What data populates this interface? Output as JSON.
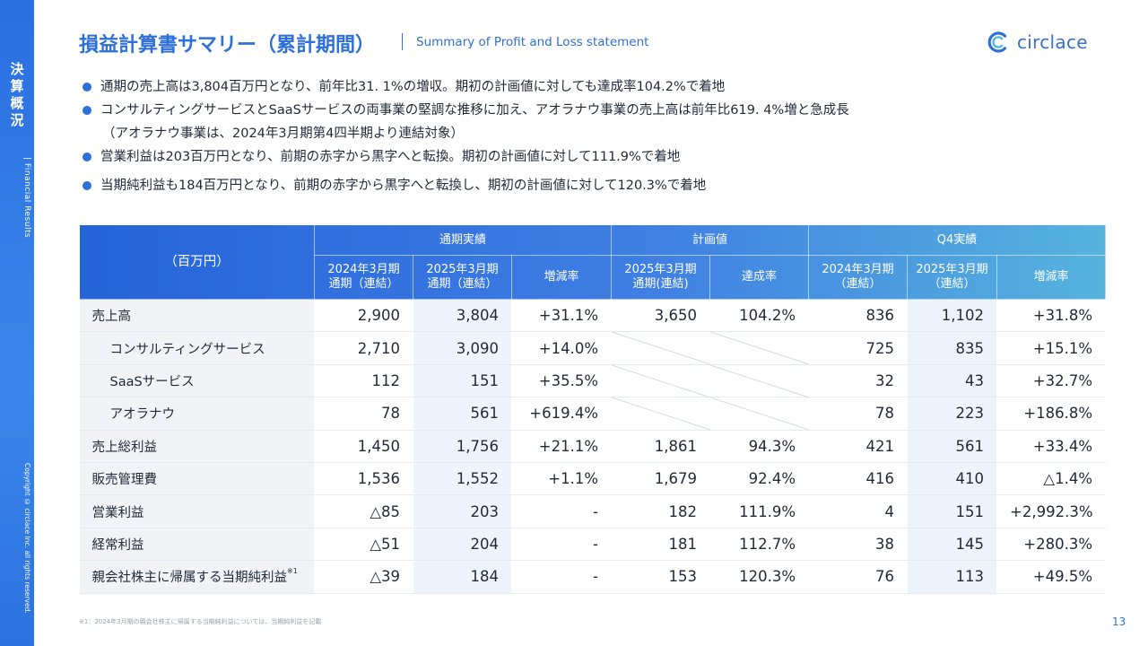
{
  "side": {
    "title_chars": [
      "決",
      "算",
      "概",
      "況"
    ],
    "subtitle": "| Financial Results",
    "copyright": "Copyright © circlace Inc. all rights reserved."
  },
  "header": {
    "title": "損益計算書サマリー（累計期間）",
    "title_en": "Summary of Profit and Loss statement",
    "logo_text": "circlace",
    "logo_icon": "circlace-c-logo-icon"
  },
  "bullets": [
    "通期の売上高は3,804百万円となり、前年比31. 1%の増収。期初の計画値に対しても達成率104.2%で着地",
    "コンサルティングサービスとSaaSサービスの両事業の堅調な推移に加え、アオラナウ事業の売上高は前年比619. 4%増と急成長",
    "（アオラナウ事業は、2024年3月期第4四半期より連結対象）",
    "営業利益は203百万円となり、前期の赤字から黒字へと転換。期初の計画値に対して111.9%で着地",
    "当期純利益も184百万円となり、前期の赤字から黒字へと転換し、期初の計画値に対して120.3%で着地"
  ],
  "table": {
    "corner": "（百万円）",
    "groups": [
      "通期実績",
      "計画値",
      "Q4実績"
    ],
    "cols": [
      [
        "2024年3月期",
        "通期（連結）"
      ],
      [
        "2025年3月期",
        "通期（連結）"
      ],
      [
        "増減率",
        ""
      ],
      [
        "2025年3月期",
        "通期(連結)"
      ],
      [
        "達成率",
        ""
      ],
      [
        "2024年3月期",
        "（連結）"
      ],
      [
        "2025年3月期",
        "（連結）"
      ],
      [
        "増減率",
        ""
      ]
    ],
    "rows": [
      {
        "label": "売上高",
        "values": [
          "2,900",
          "3,804",
          "+31.1%",
          "3,650",
          "104.2%",
          "836",
          "1,102",
          "+31.8%"
        ]
      },
      {
        "label": "コンサルティングサービス",
        "values": [
          "2,710",
          "3,090",
          "+14.0%",
          "",
          "",
          "725",
          "835",
          "+15.1%"
        ]
      },
      {
        "label": "SaaSサービス",
        "values": [
          "112",
          "151",
          "+35.5%",
          "",
          "",
          "32",
          "43",
          "+32.7%"
        ]
      },
      {
        "label": "アオラナウ",
        "values": [
          "78",
          "561",
          "+619.4%",
          "",
          "",
          "78",
          "223",
          "+186.8%"
        ]
      },
      {
        "label": "売上総利益",
        "values": [
          "1,450",
          "1,756",
          "+21.1%",
          "1,861",
          "94.3%",
          "421",
          "561",
          "+33.4%"
        ]
      },
      {
        "label": "販売管理費",
        "values": [
          "1,536",
          "1,552",
          "+1.1%",
          "1,679",
          "92.4%",
          "416",
          "410",
          "△1.4%"
        ]
      },
      {
        "label": "営業利益",
        "values": [
          "△85",
          "203",
          "-",
          "182",
          "111.9%",
          "4",
          "151",
          "+2,992.3%"
        ]
      },
      {
        "label": "経常利益",
        "values": [
          "△51",
          "204",
          "-",
          "181",
          "112.7%",
          "38",
          "145",
          "+280.3%"
        ]
      },
      {
        "label": "親会社株主に帰属する当期純利益",
        "note": "※1",
        "values": [
          "△39",
          "184",
          "-",
          "153",
          "120.3%",
          "76",
          "113",
          "+49.5%"
        ]
      }
    ]
  },
  "footnote": "※1：2024年3月期の親会社株主に帰属する当期純利益については、当期純利益を記載",
  "page_number": "13",
  "colors": {
    "accent": "#2f6fd8",
    "header_start": "#2563d9",
    "header_end": "#56b3dd",
    "highlight_column": "#eef4fc",
    "label_column": "#f1f3f6"
  }
}
